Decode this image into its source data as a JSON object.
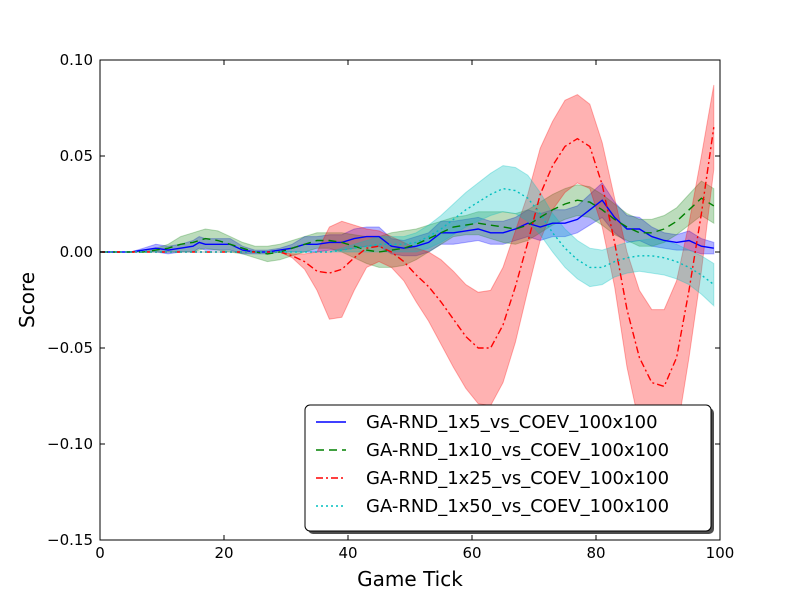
{
  "chart_data": {
    "type": "line",
    "title": "",
    "xlabel": "Game Tick",
    "ylabel": "Score",
    "xlim": [
      0,
      100
    ],
    "ylim": [
      -0.15,
      0.1
    ],
    "xticks": [
      0,
      20,
      40,
      60,
      80,
      100
    ],
    "xtick_labels": [
      "0",
      "20",
      "40",
      "60",
      "80",
      "100"
    ],
    "yticks": [
      -0.15,
      -0.1,
      -0.05,
      0.0,
      0.05,
      0.1
    ],
    "ytick_labels": [
      "−0.15",
      "−0.10",
      "−0.05",
      "0.00",
      "0.05",
      "0.10"
    ],
    "grid": false,
    "legend_position": "bottom-right",
    "x": [
      0,
      5,
      7,
      9,
      11,
      13,
      15,
      16,
      17,
      19,
      21,
      23,
      25,
      27,
      29,
      31,
      33,
      35,
      37,
      39,
      41,
      43,
      45,
      47,
      49,
      51,
      53,
      55,
      57,
      59,
      61,
      63,
      65,
      67,
      69,
      71,
      73,
      75,
      77,
      79,
      81,
      83,
      85,
      87,
      89,
      91,
      93,
      95,
      97,
      99
    ],
    "series": [
      {
        "name": "GA-RND_1x5_vs_COEV_100x100",
        "color": "#0000ff",
        "style": "solid",
        "band_color": "#0000ff",
        "values": [
          0,
          0,
          0.001,
          0.002,
          0.001,
          0.002,
          0.003,
          0.005,
          0.004,
          0.004,
          0.004,
          0.001,
          0,
          0,
          0.001,
          0.002,
          0.004,
          0.004,
          0.005,
          0.005,
          0.007,
          0.008,
          0.008,
          0.003,
          0.002,
          0.003,
          0.005,
          0.01,
          0.01,
          0.011,
          0.012,
          0.01,
          0.01,
          0.012,
          0.015,
          0.013,
          0.015,
          0.015,
          0.017,
          0.022,
          0.027,
          0.018,
          0.012,
          0.012,
          0.008,
          0.006,
          0.005,
          0.006,
          0.003,
          0.002
        ],
        "band": [
          0,
          0,
          0.001,
          0.002,
          0.002,
          0.002,
          0.003,
          0.003,
          0.003,
          0.003,
          0.003,
          0.002,
          0.001,
          0.001,
          0.001,
          0.002,
          0.004,
          0.004,
          0.004,
          0.004,
          0.005,
          0.005,
          0.005,
          0.004,
          0.004,
          0.005,
          0.005,
          0.006,
          0.006,
          0.006,
          0.006,
          0.006,
          0.006,
          0.006,
          0.007,
          0.007,
          0.007,
          0.007,
          0.007,
          0.008,
          0.009,
          0.008,
          0.007,
          0.006,
          0.005,
          0.004,
          0.004,
          0.005,
          0.004,
          0.003
        ]
      },
      {
        "name": "GA-RND_1x10_vs_COEV_100x100",
        "color": "#008000",
        "style": "dashed",
        "band_color": "#228b22",
        "values": [
          0,
          0,
          0,
          0.001,
          0.002,
          0.004,
          0.005,
          0.006,
          0.007,
          0.006,
          0.004,
          0.002,
          0,
          -0.001,
          0,
          0.002,
          0.004,
          0.006,
          0.006,
          0.005,
          0.003,
          0.001,
          0,
          0.001,
          0.002,
          0.004,
          0.007,
          0.01,
          0.013,
          0.014,
          0.015,
          0.014,
          0.013,
          0.012,
          0.014,
          0.018,
          0.022,
          0.025,
          0.027,
          0.026,
          0.022,
          0.017,
          0.013,
          0.01,
          0.01,
          0.012,
          0.016,
          0.022,
          0.028,
          0.024
        ],
        "band": [
          0,
          0,
          0,
          0.001,
          0.002,
          0.004,
          0.005,
          0.005,
          0.005,
          0.005,
          0.004,
          0.003,
          0.003,
          0.004,
          0.004,
          0.004,
          0.004,
          0.004,
          0.004,
          0.005,
          0.006,
          0.007,
          0.008,
          0.009,
          0.009,
          0.008,
          0.007,
          0.006,
          0.005,
          0.005,
          0.006,
          0.007,
          0.008,
          0.008,
          0.008,
          0.008,
          0.008,
          0.008,
          0.008,
          0.008,
          0.008,
          0.008,
          0.007,
          0.007,
          0.007,
          0.007,
          0.007,
          0.008,
          0.009,
          0.009
        ]
      },
      {
        "name": "GA-RND_1x25_vs_COEV_100x100",
        "color": "#ff0000",
        "style": "dashdot",
        "band_color": "#ff0000",
        "values": [
          0,
          0,
          0,
          0,
          0,
          0,
          0,
          0,
          0,
          0,
          0,
          0,
          0,
          0,
          0,
          -0.002,
          -0.005,
          -0.01,
          -0.011,
          -0.009,
          -0.003,
          0.002,
          0.003,
          0,
          -0.005,
          -0.012,
          -0.018,
          -0.026,
          -0.035,
          -0.044,
          -0.05,
          -0.05,
          -0.038,
          -0.018,
          0.005,
          0.03,
          0.045,
          0.055,
          0.059,
          0.055,
          0.035,
          0.005,
          -0.03,
          -0.055,
          -0.068,
          -0.07,
          -0.055,
          -0.02,
          0.02,
          0.065
        ],
        "band": [
          0,
          0,
          0,
          0,
          0,
          0,
          0,
          0,
          0,
          0,
          0,
          0,
          0,
          0,
          0,
          0.001,
          0.004,
          0.01,
          0.024,
          0.025,
          0.017,
          0.01,
          0.008,
          0.008,
          0.01,
          0.014,
          0.018,
          0.022,
          0.025,
          0.027,
          0.029,
          0.03,
          0.03,
          0.029,
          0.025,
          0.024,
          0.023,
          0.024,
          0.023,
          0.022,
          0.022,
          0.023,
          0.03,
          0.035,
          0.038,
          0.04,
          0.04,
          0.035,
          0.03,
          0.022
        ]
      },
      {
        "name": "GA-RND_1x50_vs_COEV_100x100",
        "color": "#00bfbf",
        "style": "dotted",
        "band_color": "#00bfbf",
        "values": [
          0,
          0,
          0,
          0,
          0,
          0,
          0,
          0,
          0,
          0,
          0,
          0,
          0,
          0,
          0,
          0,
          0,
          0,
          0,
          0.001,
          0.002,
          0.003,
          0.004,
          0.004,
          0.004,
          0.005,
          0.008,
          0.012,
          0.017,
          0.022,
          0.026,
          0.03,
          0.033,
          0.032,
          0.028,
          0.02,
          0.01,
          0.002,
          -0.004,
          -0.008,
          -0.008,
          -0.005,
          -0.003,
          -0.002,
          -0.002,
          -0.003,
          -0.005,
          -0.008,
          -0.012,
          -0.017
        ],
        "band": [
          0,
          0,
          0,
          0,
          0,
          0,
          0,
          0,
          0,
          0,
          0,
          0,
          0,
          0,
          0,
          0,
          0,
          0,
          0,
          0.001,
          0.002,
          0.003,
          0.004,
          0.004,
          0.004,
          0.005,
          0.006,
          0.007,
          0.008,
          0.009,
          0.01,
          0.011,
          0.012,
          0.012,
          0.012,
          0.011,
          0.01,
          0.01,
          0.01,
          0.01,
          0.009,
          0.008,
          0.008,
          0.008,
          0.009,
          0.009,
          0.009,
          0.009,
          0.01,
          0.011
        ]
      }
    ]
  }
}
